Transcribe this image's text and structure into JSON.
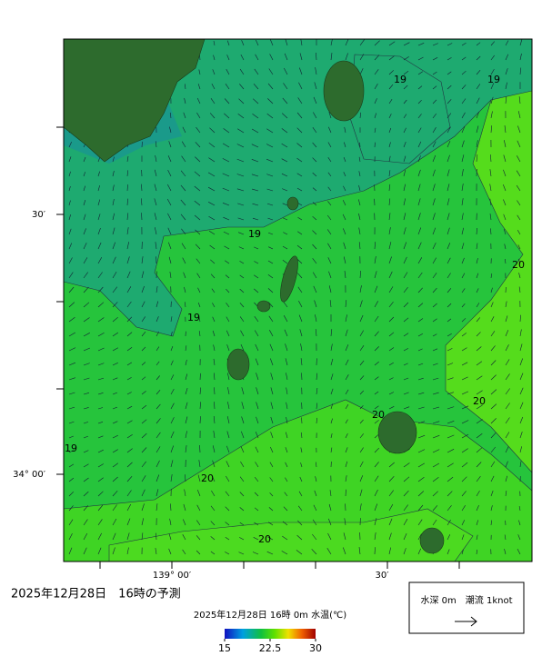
{
  "map": {
    "title": "2025年12月28日　16時の予測",
    "lat_labels": [
      "30′",
      "34° 00′"
    ],
    "lon_labels": [
      "139° 00′",
      "30′"
    ],
    "contour_labels": [
      19,
      19,
      19,
      19,
      19,
      20,
      20,
      20,
      20,
      20
    ],
    "colorbar": {
      "caption": "2025年12月28日 16時 0m 水温(℃)",
      "range": [
        15,
        30
      ],
      "ticks": [
        15,
        22.5,
        30
      ]
    },
    "legend": {
      "label": "水深 0m　潮流 1knot"
    }
  }
}
